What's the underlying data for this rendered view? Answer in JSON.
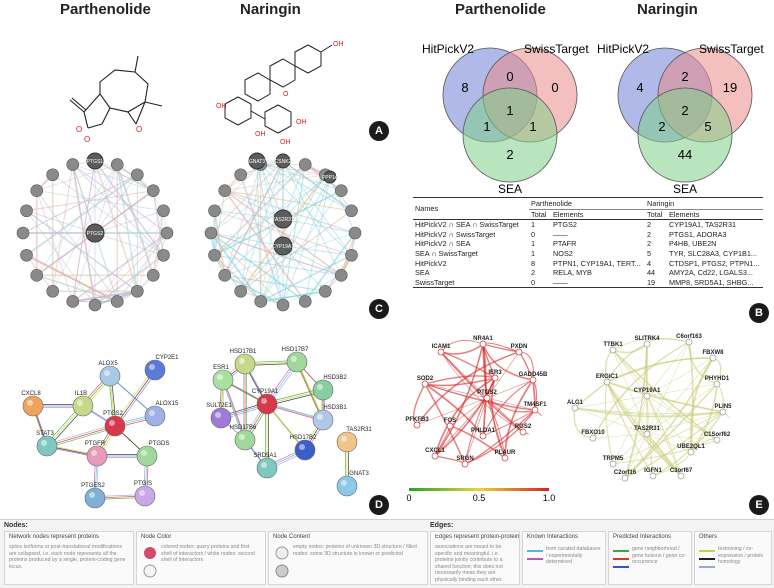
{
  "titles": {
    "parthenolide_left": "Parthenolide",
    "naringin_left": "Naringin",
    "parthenolide_right": "Parthenolide",
    "naringin_right": "Naringin"
  },
  "panels": {
    "A": "A",
    "B": "B",
    "C": "C",
    "D": "D",
    "E": "E"
  },
  "venn": {
    "parthenolide": {
      "hitpick": "HitPickV2",
      "swiss": "SwissTarget",
      "sea": "SEA",
      "counts": {
        "hit_only": "8",
        "hit_swiss": "0",
        "swiss_only": "0",
        "all": "1",
        "hit_sea": "1",
        "swiss_sea": "1",
        "sea_only": "2"
      }
    },
    "naringin": {
      "hitpick": "HitPickV2",
      "swiss": "SwissTarget",
      "sea": "SEA",
      "counts": {
        "hit_only": "4",
        "hit_swiss": "2",
        "swiss_only": "19",
        "all": "2",
        "hit_sea": "2",
        "swiss_sea": "5",
        "sea_only": "44"
      }
    },
    "colors": {
      "hitpick": "#6f7fd6",
      "swiss": "#e98a8a",
      "sea": "#7fcf88"
    }
  },
  "table": {
    "col_names": "Names",
    "col_parth": "Parthenolide",
    "col_nar": "Naringin",
    "total": "Total",
    "elements": "Elements",
    "rows": [
      {
        "name": "HitPickV2 ∩ SEA ∩ SwissTarget",
        "pt": "1",
        "pe": "PTGS2",
        "nt": "2",
        "ne": "CYP19A1, TAS2R31"
      },
      {
        "name": "HitPickV2 ∩ SwissTarget",
        "pt": "0",
        "pe": "——",
        "nt": "2",
        "ne": "PTGS1, ADORA3"
      },
      {
        "name": "HitPickV2 ∩ SEA",
        "pt": "1",
        "pe": "PTAFR",
        "nt": "2",
        "ne": "P4HB, UBE2N"
      },
      {
        "name": "SEA ∩ SwissTarget",
        "pt": "1",
        "pe": "NOS2",
        "nt": "5",
        "ne": "TYR, SLC28A3, CYP1B1..."
      },
      {
        "name": "HitPickV2",
        "pt": "8",
        "pe": "PTPN1, CYP19A1, TERT...",
        "nt": "4",
        "ne": "CTDSP1, PTGS2, PTPN1..."
      },
      {
        "name": "SEA",
        "pt": "2",
        "pe": "RELA, MYB",
        "nt": "44",
        "ne": "AMY2A, Cd22, LGALS3..."
      },
      {
        "name": "SwissTarget",
        "pt": "0",
        "pe": "——",
        "nt": "19",
        "ne": "MMP8, SRD5A1, SHBG..."
      }
    ]
  },
  "genemania": {
    "parthenolide": {
      "center": "PTGS2",
      "top": "PTGS1"
    },
    "naringin": {
      "top_left": "GNAT3",
      "top_right": "CSNK2",
      "mid": "TAS2R31",
      "low": "CYP19A1",
      "right": "PPP1A"
    }
  },
  "string": {
    "parthenolide": [
      "ALOX5",
      "CYP2E1",
      "CXCL8",
      "IL1B",
      "ALOX15",
      "PTGS2",
      "STAT3",
      "PTGFR",
      "PTGDS",
      "PTGES2",
      "PTGIS"
    ],
    "naringin": [
      "HSD17B1",
      "HSD17B7",
      "ESR1",
      "HSD3B2",
      "SULT2E1",
      "CYP19A1",
      "HSD3B1",
      "HSD17B6",
      "HSD17B2",
      "SRD5A1",
      "TAS2R31",
      "GNAT3"
    ]
  },
  "net_e": {
    "parthenolide": [
      "ICAM1",
      "NR4A1",
      "PXDN",
      "IER3",
      "GADD45B",
      "SOD2",
      "PTGS2",
      "TM4SF1",
      "PFKFB3",
      "FOS",
      "RGS2",
      "PHLDA1",
      "CXCL1",
      "SRGN",
      "PLAUR"
    ],
    "naringin": [
      "TTBK1",
      "SLITRK4",
      "C6orf163",
      "FBXW8",
      "ERGIC1",
      "PHYHD1",
      "ALG1",
      "CYP19A1",
      "PLIN5",
      "FBXO10",
      "TAS2R31",
      "C1Sorf62",
      "TRPM5",
      "UBE2QL1",
      "C2orf16",
      "IGFN1",
      "C3orf67"
    ],
    "scale": [
      "0",
      "0.5",
      "1.0"
    ]
  },
  "legend": {
    "nodes_title": "Nodes:",
    "edges_title": "Edges:",
    "boxes": [
      {
        "cap": "Network nodes represent proteins",
        "txt": "splice isoforms or post-translational modifications are collapsed, i.e. each node represents all the proteins produced by a single, protein-coding gene locus."
      },
      {
        "cap": "Node Color",
        "txt": "colored nodes: query proteins and first shell of interactors / white nodes: second shell of interactors"
      },
      {
        "cap": "Node Content",
        "txt": "empty nodes: proteins of unknown 3D structure / filled nodes: some 3D structure is known or predicted"
      },
      {
        "cap": "Edges represent protein-protein associations",
        "txt": "associations are meant to be specific and meaningful, i.e. proteins jointly contribute to a shared function; this does not necessarily mean they are physically binding each other."
      },
      {
        "cap": "Known Interactions",
        "txt": "from curated databases / experimentally determined"
      },
      {
        "cap": "Predicted Interactions",
        "txt": "gene neighborhood / gene fusions / gene co-occurrence"
      },
      {
        "cap": "Others",
        "txt": "textmining / co-expression / protein homology"
      }
    ]
  }
}
